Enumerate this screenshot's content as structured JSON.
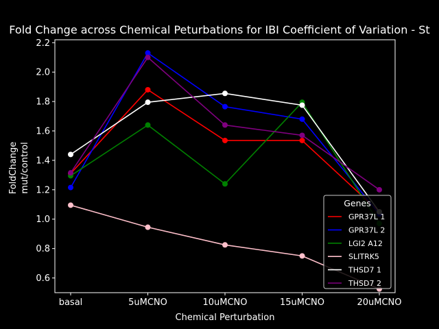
{
  "chart_data": {
    "type": "line",
    "title": "Fold Change across Chemical Peturbations for IBI Coefficient of Variation - St",
    "xlabel": "Chemical Perturbation",
    "ylabel": [
      "FoldChange",
      "mut/control"
    ],
    "categories": [
      "basal",
      "5uMCNO",
      "10uMCNO",
      "15uMCNO",
      "20uMCNO"
    ],
    "ylim": [
      0.5,
      2.22
    ],
    "yticks": [
      "0.6",
      "0.8",
      "1.0",
      "1.2",
      "1.4",
      "1.6",
      "1.8",
      "2.0",
      "2.2"
    ],
    "grid": false,
    "legend": {
      "title": "Genes",
      "placement": "lower-right"
    },
    "series": [
      {
        "name": "GPR37L 1",
        "color": "#ff0000",
        "values": [
          1.31,
          1.88,
          1.535,
          1.535,
          1.05
        ]
      },
      {
        "name": "GPR37L 2",
        "color": "#0000ff",
        "values": [
          1.215,
          2.13,
          1.765,
          1.68,
          1.035
        ]
      },
      {
        "name": "LGI2 A12",
        "color": "#008000",
        "values": [
          1.295,
          1.64,
          1.24,
          1.795,
          0.97
        ]
      },
      {
        "name": "SLITRK5",
        "color": "#ffc0cb",
        "values": [
          1.095,
          0.945,
          0.825,
          0.75,
          0.525
        ]
      },
      {
        "name": "THSD7 1",
        "color": "#ffffff",
        "values": [
          1.44,
          1.795,
          1.855,
          1.775,
          1.05
        ]
      },
      {
        "name": "THSD7 2",
        "color": "#800080",
        "values": [
          1.315,
          2.1,
          1.64,
          1.57,
          1.2
        ]
      }
    ]
  }
}
